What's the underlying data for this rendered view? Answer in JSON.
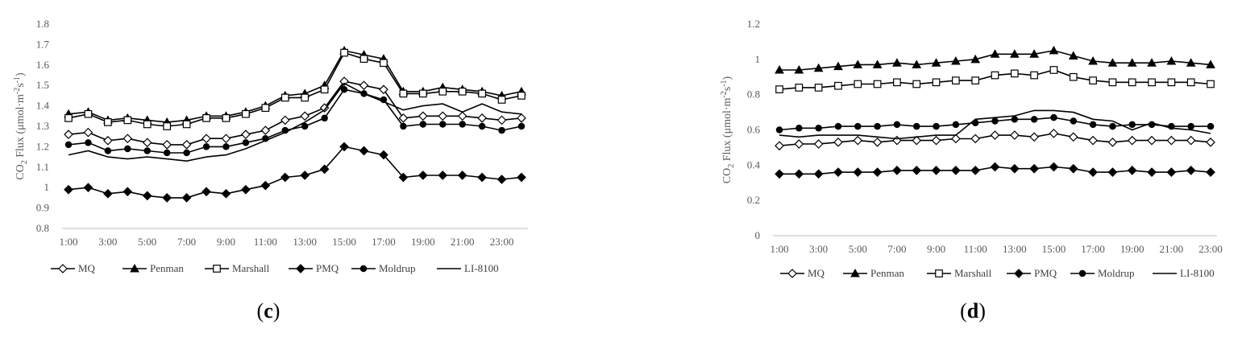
{
  "panels": [
    {
      "label_open": "(",
      "label_letter": "c",
      "label_close": ")"
    },
    {
      "label_open": "(",
      "label_letter": "d",
      "label_close": ")"
    }
  ],
  "chart_data": [
    {
      "type": "line",
      "ylabel": "CO2 Flux (μmol·m-2s-1)",
      "ylim": [
        0.8,
        1.8
      ],
      "yticks": [
        "0.8",
        "0.9",
        "1",
        "1.1",
        "1.2",
        "1.3",
        "1.4",
        "1.5",
        "1.6",
        "1.7",
        "1.8"
      ],
      "x": [
        1,
        2,
        3,
        4,
        5,
        6,
        7,
        8,
        9,
        10,
        11,
        12,
        13,
        14,
        15,
        16,
        17,
        18,
        19,
        20,
        21,
        22,
        23,
        24
      ],
      "xtick_labels": [
        "1:00",
        "3:00",
        "5:00",
        "7:00",
        "9:00",
        "11:00",
        "13:00",
        "15:00",
        "17:00",
        "19:00",
        "21:00",
        "23:00"
      ],
      "legend_position": "bottom",
      "series": [
        {
          "name": "MQ",
          "marker": "diamond-open",
          "values": [
            1.26,
            1.27,
            1.23,
            1.24,
            1.22,
            1.21,
            1.21,
            1.24,
            1.24,
            1.26,
            1.28,
            1.33,
            1.35,
            1.39,
            1.52,
            1.5,
            1.48,
            1.34,
            1.35,
            1.35,
            1.35,
            1.34,
            1.33,
            1.34
          ]
        },
        {
          "name": "Penman",
          "marker": "triangle-filled",
          "values": [
            1.36,
            1.37,
            1.33,
            1.34,
            1.33,
            1.32,
            1.33,
            1.35,
            1.35,
            1.37,
            1.4,
            1.45,
            1.46,
            1.5,
            1.67,
            1.65,
            1.63,
            1.47,
            1.47,
            1.49,
            1.48,
            1.47,
            1.45,
            1.47
          ]
        },
        {
          "name": "Marshall",
          "marker": "square-open",
          "values": [
            1.34,
            1.36,
            1.32,
            1.33,
            1.31,
            1.3,
            1.31,
            1.34,
            1.34,
            1.36,
            1.39,
            1.44,
            1.44,
            1.48,
            1.66,
            1.63,
            1.61,
            1.46,
            1.46,
            1.47,
            1.47,
            1.46,
            1.43,
            1.45
          ]
        },
        {
          "name": "PMQ",
          "marker": "diamond-filled",
          "values": [
            0.99,
            1.0,
            0.97,
            0.98,
            0.96,
            0.95,
            0.95,
            0.98,
            0.97,
            0.99,
            1.01,
            1.05,
            1.06,
            1.09,
            1.2,
            1.18,
            1.16,
            1.05,
            1.06,
            1.06,
            1.06,
            1.05,
            1.04,
            1.05
          ]
        },
        {
          "name": "Moldrup",
          "marker": "circle-filled",
          "values": [
            1.21,
            1.22,
            1.18,
            1.19,
            1.18,
            1.17,
            1.17,
            1.2,
            1.2,
            1.22,
            1.24,
            1.28,
            1.3,
            1.34,
            1.48,
            1.46,
            1.43,
            1.3,
            1.31,
            1.31,
            1.31,
            1.3,
            1.28,
            1.3
          ]
        },
        {
          "name": "LI-8100",
          "marker": "none",
          "values": [
            1.16,
            1.18,
            1.15,
            1.14,
            1.15,
            1.14,
            1.13,
            1.15,
            1.16,
            1.19,
            1.23,
            1.27,
            1.32,
            1.38,
            1.51,
            1.46,
            1.42,
            1.38,
            1.4,
            1.41,
            1.37,
            1.41,
            1.37,
            1.36
          ]
        }
      ]
    },
    {
      "type": "line",
      "ylabel": "CO2 Flux (μmol·m-2s-1)",
      "ylim": [
        0,
        1.2
      ],
      "yticks": [
        "0",
        "0.2",
        "0.4",
        "0.6",
        "0.8",
        "1",
        "1.2"
      ],
      "x": [
        1,
        2,
        3,
        4,
        5,
        6,
        7,
        8,
        9,
        10,
        11,
        12,
        13,
        14,
        15,
        16,
        17,
        18,
        19,
        20,
        21,
        22,
        23
      ],
      "xtick_labels": [
        "1:00",
        "3:00",
        "5:00",
        "7:00",
        "9:00",
        "11:00",
        "13:00",
        "15:00",
        "17:00",
        "19:00",
        "21:00",
        "23:00"
      ],
      "legend_position": "bottom",
      "series": [
        {
          "name": "MQ",
          "marker": "diamond-open",
          "values": [
            0.51,
            0.52,
            0.52,
            0.53,
            0.54,
            0.53,
            0.54,
            0.54,
            0.54,
            0.55,
            0.55,
            0.57,
            0.57,
            0.56,
            0.58,
            0.56,
            0.54,
            0.53,
            0.54,
            0.54,
            0.54,
            0.54,
            0.53
          ]
        },
        {
          "name": "Penman",
          "marker": "triangle-filled",
          "values": [
            0.94,
            0.94,
            0.95,
            0.96,
            0.97,
            0.97,
            0.98,
            0.97,
            0.98,
            0.99,
            1.0,
            1.03,
            1.03,
            1.03,
            1.05,
            1.02,
            0.99,
            0.98,
            0.98,
            0.98,
            0.99,
            0.98,
            0.97
          ]
        },
        {
          "name": "Marshall",
          "marker": "square-open",
          "values": [
            0.83,
            0.84,
            0.84,
            0.85,
            0.86,
            0.86,
            0.87,
            0.86,
            0.87,
            0.88,
            0.88,
            0.91,
            0.92,
            0.91,
            0.94,
            0.9,
            0.88,
            0.87,
            0.87,
            0.87,
            0.87,
            0.87,
            0.86
          ]
        },
        {
          "name": "PMQ",
          "marker": "diamond-filled",
          "values": [
            0.35,
            0.35,
            0.35,
            0.36,
            0.36,
            0.36,
            0.37,
            0.37,
            0.37,
            0.37,
            0.37,
            0.39,
            0.38,
            0.38,
            0.39,
            0.38,
            0.36,
            0.36,
            0.37,
            0.36,
            0.36,
            0.37,
            0.36
          ]
        },
        {
          "name": "Moldrup",
          "marker": "circle-filled",
          "values": [
            0.6,
            0.61,
            0.61,
            0.62,
            0.62,
            0.62,
            0.63,
            0.62,
            0.62,
            0.63,
            0.64,
            0.65,
            0.66,
            0.66,
            0.67,
            0.65,
            0.63,
            0.62,
            0.63,
            0.63,
            0.62,
            0.62,
            0.62
          ]
        },
        {
          "name": "LI-8100",
          "marker": "none",
          "values": [
            0.57,
            0.56,
            0.57,
            0.57,
            0.57,
            0.56,
            0.55,
            0.56,
            0.57,
            0.57,
            0.66,
            0.67,
            0.68,
            0.71,
            0.71,
            0.7,
            0.66,
            0.65,
            0.6,
            0.64,
            0.61,
            0.6,
            0.58
          ]
        }
      ]
    }
  ]
}
